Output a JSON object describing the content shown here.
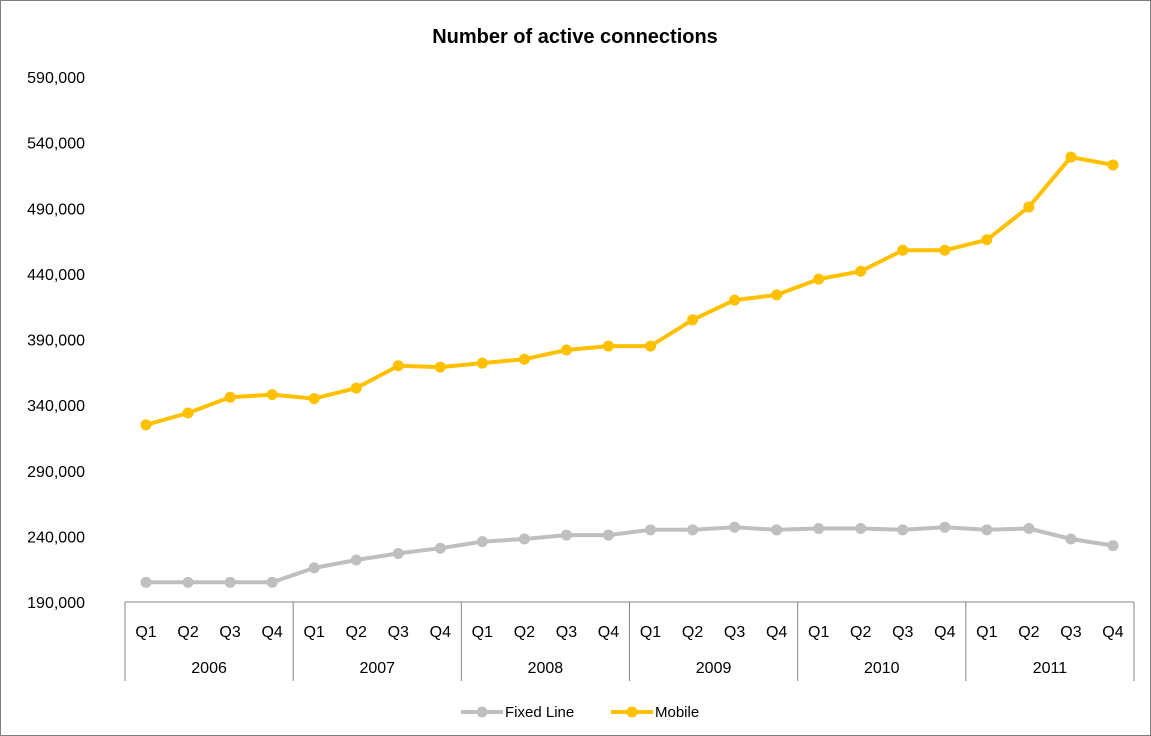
{
  "chart_data": {
    "type": "line",
    "title": "Number of active connections",
    "xlabel": "",
    "ylabel": "",
    "ylim": [
      190000,
      590000
    ],
    "yticks": [
      190000,
      240000,
      290000,
      340000,
      390000,
      440000,
      490000,
      540000,
      590000
    ],
    "ytick_labels": [
      "190,000",
      "240,000",
      "290,000",
      "340,000",
      "390,000",
      "440,000",
      "490,000",
      "540,000",
      "590,000"
    ],
    "grid": false,
    "legend_position": "bottom",
    "years": [
      "2006",
      "2007",
      "2008",
      "2009",
      "2010",
      "2011"
    ],
    "quarters": [
      "Q1",
      "Q2",
      "Q3",
      "Q4"
    ],
    "categories": [
      "Q1 2006",
      "Q2 2006",
      "Q3 2006",
      "Q4 2006",
      "Q1 2007",
      "Q2 2007",
      "Q3 2007",
      "Q4 2007",
      "Q1 2008",
      "Q2 2008",
      "Q3 2008",
      "Q4 2008",
      "Q1 2009",
      "Q2 2009",
      "Q3 2009",
      "Q4 2009",
      "Q1 2010",
      "Q2 2010",
      "Q3 2010",
      "Q4 2010",
      "Q1 2011",
      "Q2 2011",
      "Q3 2011",
      "Q4 2011"
    ],
    "series": [
      {
        "name": "Fixed Line",
        "color": "#bfbfbf",
        "values": [
          205000,
          205000,
          205000,
          205000,
          216000,
          222000,
          227000,
          231000,
          236000,
          238000,
          241000,
          241000,
          245000,
          245000,
          247000,
          245000,
          246000,
          246000,
          245000,
          247000,
          245000,
          246000,
          238000,
          233000
        ]
      },
      {
        "name": "Mobile",
        "color": "#ffc000",
        "values": [
          325000,
          334000,
          346000,
          348000,
          345000,
          353000,
          370000,
          369000,
          372000,
          375000,
          382000,
          385000,
          385000,
          405000,
          420000,
          424000,
          436000,
          442000,
          458000,
          458000,
          466000,
          491000,
          529000,
          523000
        ]
      }
    ]
  }
}
